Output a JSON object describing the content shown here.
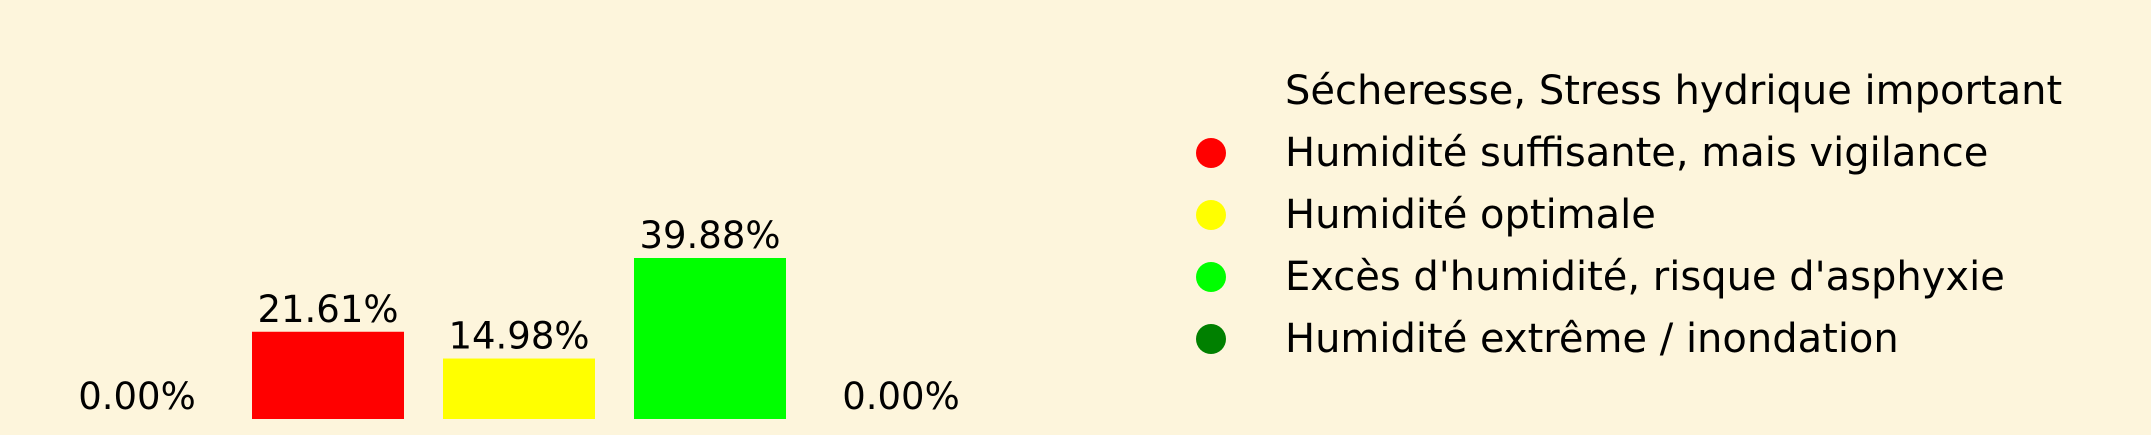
{
  "background_color": "#fdf5dc",
  "chart_data": {
    "type": "bar",
    "categories": [
      "Sécheresse, Stress hydrique important",
      "Humidité suffisante, mais vigilance",
      "Humidité optimale",
      "Excès d'humidité, risque d'asphyxie",
      "Humidité extrême / inondation"
    ],
    "values": [
      0.0,
      21.61,
      14.98,
      39.88,
      0.0
    ],
    "value_labels": [
      "0.00%",
      "21.61%",
      "14.98%",
      "39.88%",
      "0.00%"
    ],
    "colors": [
      "#fdf5dc",
      "#ff0000",
      "#ffff00",
      "#00ff00",
      "#008000"
    ],
    "unit": "%",
    "title": "",
    "xlabel": "",
    "ylabel": "",
    "grid": false,
    "axes_visible": false,
    "legend": {
      "position": "right",
      "marker": "circle",
      "items": [
        {
          "label": "Sécheresse, Stress hydrique important",
          "color": "#fdf5dc"
        },
        {
          "label": "Humidité suffisante, mais vigilance",
          "color": "#ff0000"
        },
        {
          "label": "Humidité optimale",
          "color": "#ffff00"
        },
        {
          "label": "Excès d'humidité, risque d'asphyxie",
          "color": "#00ff00"
        },
        {
          "label": "Humidité extrême / inondation",
          "color": "#008000"
        }
      ]
    }
  }
}
